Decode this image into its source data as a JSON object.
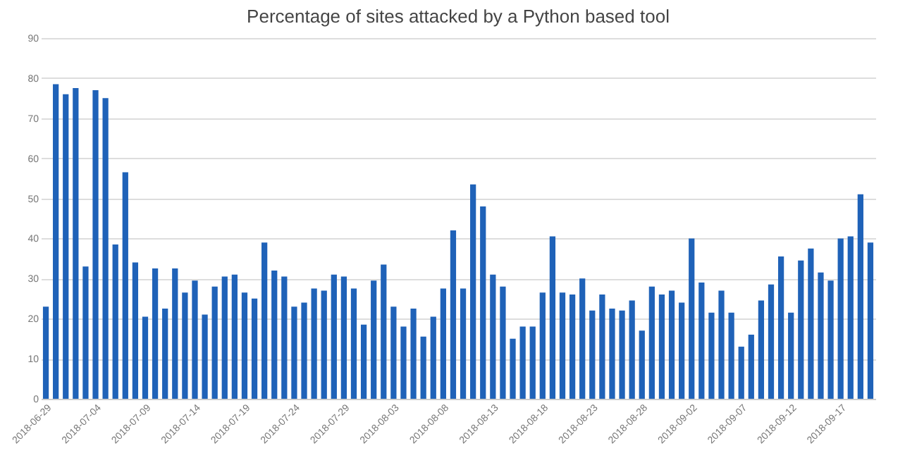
{
  "chart_data": {
    "type": "bar",
    "title": "Percentage of sites attacked by a Python based tool",
    "categories": [
      "2018-06-29",
      null,
      null,
      null,
      null,
      "2018-07-04",
      null,
      null,
      null,
      null,
      "2018-07-09",
      null,
      null,
      null,
      null,
      "2018-07-14",
      null,
      null,
      null,
      null,
      "2018-07-19",
      null,
      null,
      null,
      null,
      "2018-07-24",
      null,
      null,
      null,
      null,
      "2018-07-29",
      null,
      null,
      null,
      null,
      "2018-08-03",
      null,
      null,
      null,
      null,
      "2018-08-08",
      null,
      null,
      null,
      null,
      "2018-08-13",
      null,
      null,
      null,
      null,
      "2018-08-18",
      null,
      null,
      null,
      null,
      "2018-08-23",
      null,
      null,
      null,
      null,
      "2018-08-28",
      null,
      null,
      null,
      null,
      "2018-09-02",
      null,
      null,
      null,
      null,
      "2018-09-07",
      null,
      null,
      null,
      null,
      "2018-09-12",
      null,
      null,
      null,
      null,
      "2018-09-17",
      null,
      null,
      null
    ],
    "values": [
      23,
      78.5,
      76,
      77.5,
      33,
      77,
      75,
      38.5,
      56.5,
      34,
      20.5,
      32.5,
      22.5,
      32.5,
      26.5,
      29.5,
      21,
      28,
      30.5,
      31,
      26.5,
      25,
      39,
      32,
      30.5,
      23,
      24,
      27.5,
      27,
      31,
      30.5,
      27.5,
      18.5,
      29.5,
      33.5,
      23,
      18,
      22.5,
      15.5,
      20.5,
      27.5,
      42,
      27.5,
      53.5,
      48,
      31,
      28,
      15,
      18,
      18,
      26.5,
      40.5,
      26.5,
      26,
      30,
      22,
      26,
      22.5,
      22,
      24.5,
      17,
      28,
      26,
      27,
      24,
      40,
      29,
      21.5,
      27,
      21.5,
      13,
      16,
      24.5,
      28.5,
      35.5,
      21.5,
      34.5,
      37.5,
      31.5,
      29.5,
      40,
      40.5,
      51,
      39
    ],
    "color": "#1f62b8",
    "ylim": [
      0,
      90
    ],
    "yticks": [
      0,
      10,
      20,
      30,
      40,
      50,
      60,
      70,
      80,
      90
    ],
    "grid": "y"
  }
}
